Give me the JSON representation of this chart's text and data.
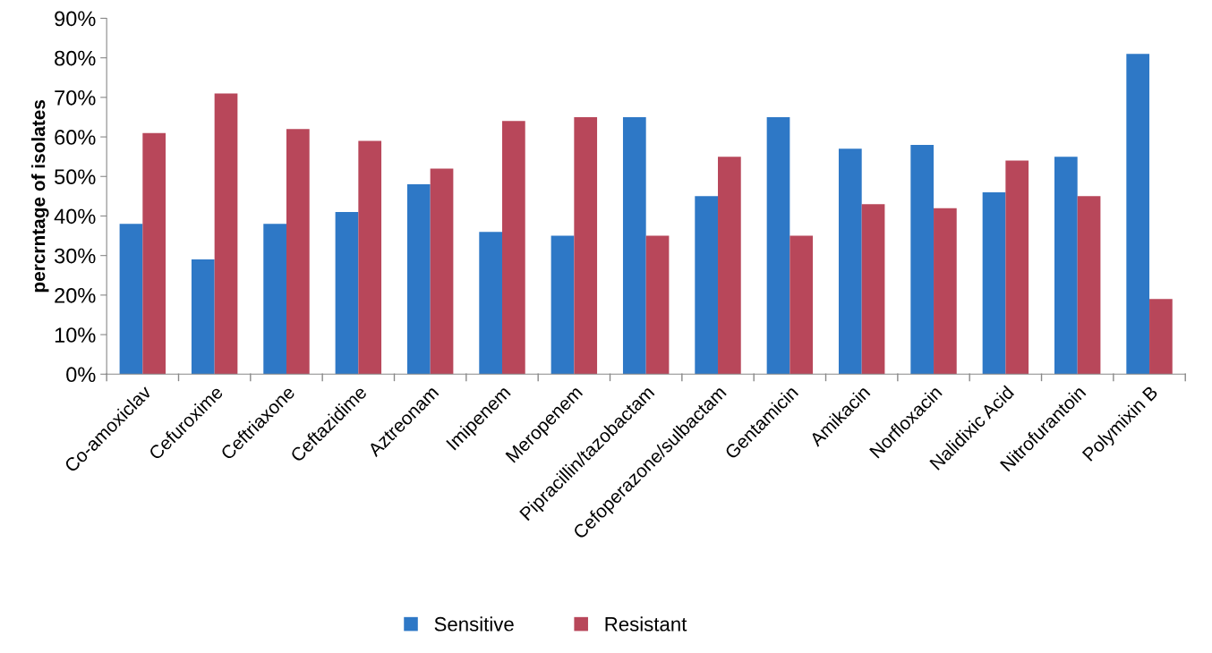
{
  "chart_data": {
    "type": "bar",
    "ylabel": "percrntage of isolates",
    "categories": [
      "Co-amoxiclav",
      "Cefuroxime",
      "Ceftriaxone",
      "Ceftazidime",
      "Aztreonam",
      "Imipenem",
      "Meropenem",
      "Pipracillin/tazobactam",
      "Cefoperazone/sulbactam",
      "Gentamicin",
      "Amikacin",
      "Norfloxacin",
      "Nalidixic Acid",
      "Nitrofurantoin",
      "Polymixin B"
    ],
    "series": [
      {
        "name": "Sensitive",
        "color": "#2e78c6",
        "values": [
          38,
          29,
          38,
          41,
          48,
          36,
          35,
          65,
          45,
          65,
          57,
          58,
          46,
          55,
          81
        ]
      },
      {
        "name": "Resistant",
        "color": "#b8475a",
        "values": [
          61,
          71,
          62,
          59,
          52,
          64,
          65,
          35,
          55,
          35,
          43,
          42,
          54,
          45,
          19
        ]
      }
    ],
    "ylim": [
      0,
      90
    ],
    "yticks": [
      {
        "value": 0,
        "label": "0%"
      },
      {
        "value": 10,
        "label": "10%"
      },
      {
        "value": 20,
        "label": "20%"
      },
      {
        "value": 30,
        "label": "30%"
      },
      {
        "value": 40,
        "label": "40%"
      },
      {
        "value": 50,
        "label": "50%"
      },
      {
        "value": 60,
        "label": "60%"
      },
      {
        "value": 70,
        "label": "70%"
      },
      {
        "value": 80,
        "label": "80%"
      },
      {
        "value": 90,
        "label": "90%"
      }
    ],
    "grid": false,
    "legend": "bottom"
  }
}
